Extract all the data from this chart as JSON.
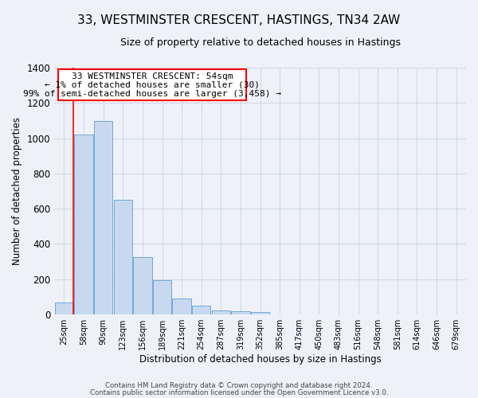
{
  "title": "33, WESTMINSTER CRESCENT, HASTINGS, TN34 2AW",
  "subtitle": "Size of property relative to detached houses in Hastings",
  "xlabel": "Distribution of detached houses by size in Hastings",
  "ylabel": "Number of detached properties",
  "bar_labels": [
    "25sqm",
    "58sqm",
    "90sqm",
    "123sqm",
    "156sqm",
    "189sqm",
    "221sqm",
    "254sqm",
    "287sqm",
    "319sqm",
    "352sqm",
    "385sqm",
    "417sqm",
    "450sqm",
    "483sqm",
    "516sqm",
    "548sqm",
    "581sqm",
    "614sqm",
    "646sqm",
    "679sqm"
  ],
  "bar_values": [
    65,
    1020,
    1100,
    650,
    325,
    195,
    90,
    50,
    20,
    15,
    10,
    0,
    0,
    0,
    0,
    0,
    0,
    0,
    0,
    0,
    0
  ],
  "bar_color": "#c8d9ef",
  "bar_edge_color": "#6fa8d6",
  "ylim": [
    0,
    1400
  ],
  "yticks": [
    0,
    200,
    400,
    600,
    800,
    1000,
    1200,
    1400
  ],
  "annotation_line1": "33 WESTMINSTER CRESCENT: 54sqm",
  "annotation_line2": "← 1% of detached houses are smaller (30)",
  "annotation_line3": "99% of semi-detached houses are larger (3,458) →",
  "footer_line1": "Contains HM Land Registry data © Crown copyright and database right 2024.",
  "footer_line2": "Contains public sector information licensed under the Open Government Licence v3.0.",
  "grid_color": "#d0d8e8",
  "background_color": "#eef2f8",
  "red_line_xindex": 0.47,
  "title_fontsize": 11,
  "subtitle_fontsize": 9
}
